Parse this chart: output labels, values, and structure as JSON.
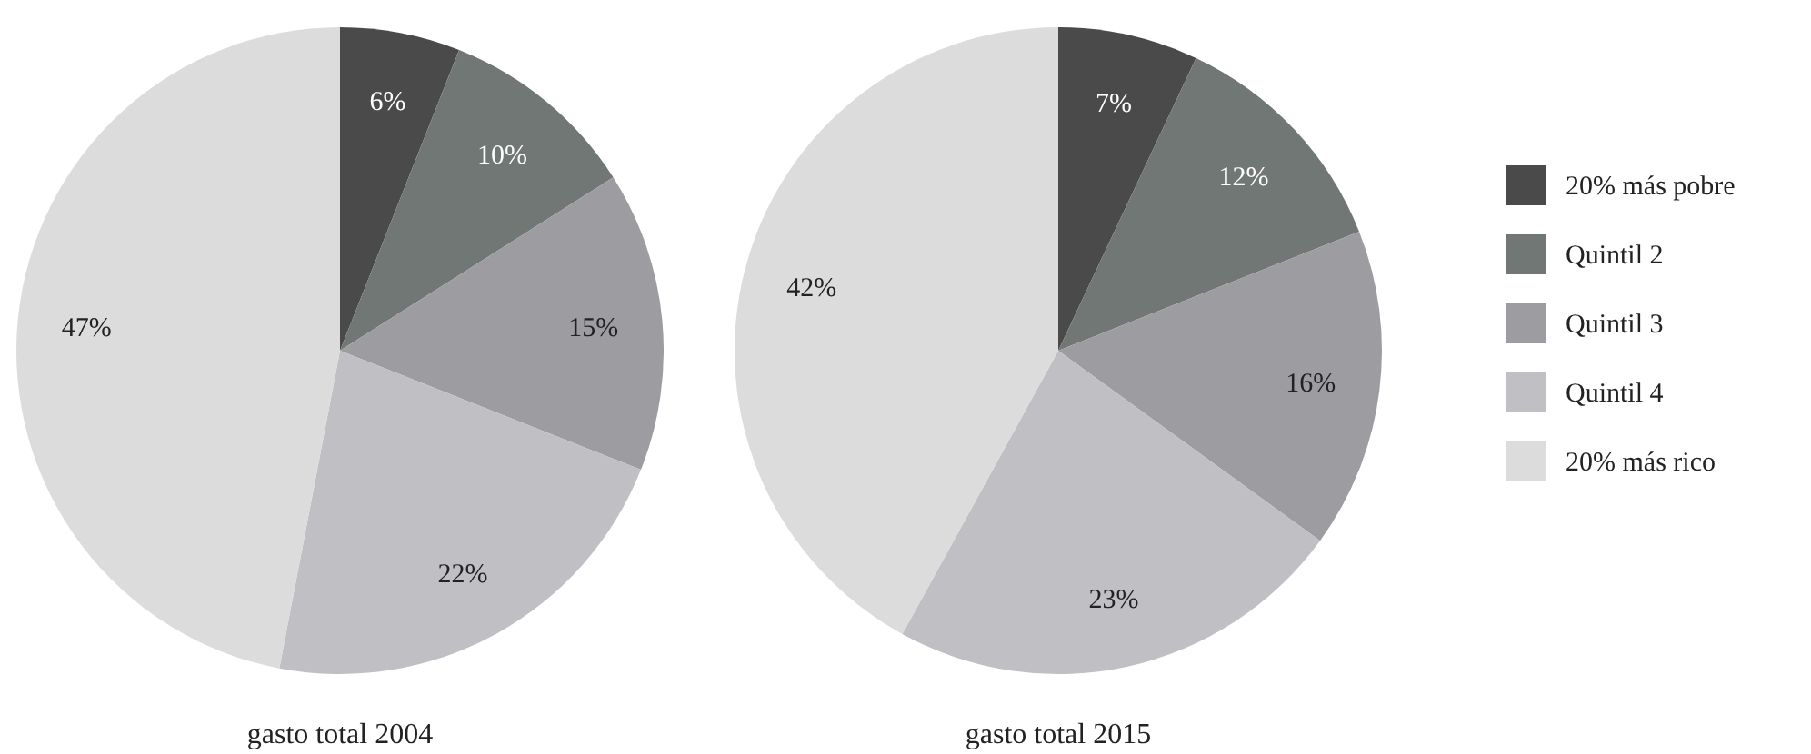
{
  "chart_data": [
    {
      "type": "pie",
      "title": "gasto total 2004",
      "categories": [
        null,
        null,
        null,
        null,
        null
      ],
      "values": [
        6,
        10,
        15,
        22,
        47
      ],
      "value_labels": [
        "6%",
        "10%",
        "15%",
        "22%",
        "47%"
      ],
      "colors": [
        "#4a4a4a",
        "#717775",
        "#9d9ca0",
        "#c0bfc4",
        "#dcdcdc"
      ]
    },
    {
      "type": "pie",
      "title": "gasto total 2015",
      "categories": [
        "20% más pobre",
        "Quintil 2",
        "Quintil 3",
        "Quintil 4",
        "20% más rico"
      ],
      "values": [
        7,
        12,
        16,
        23,
        42
      ],
      "value_labels": [
        "7%",
        "12%",
        "16%",
        "23%",
        "42%"
      ],
      "colors": [
        "#4a4a4a",
        "#717775",
        "#9d9ca0",
        "#c0bfc4",
        "#dcdcdc"
      ],
      "legend": "right"
    }
  ]
}
